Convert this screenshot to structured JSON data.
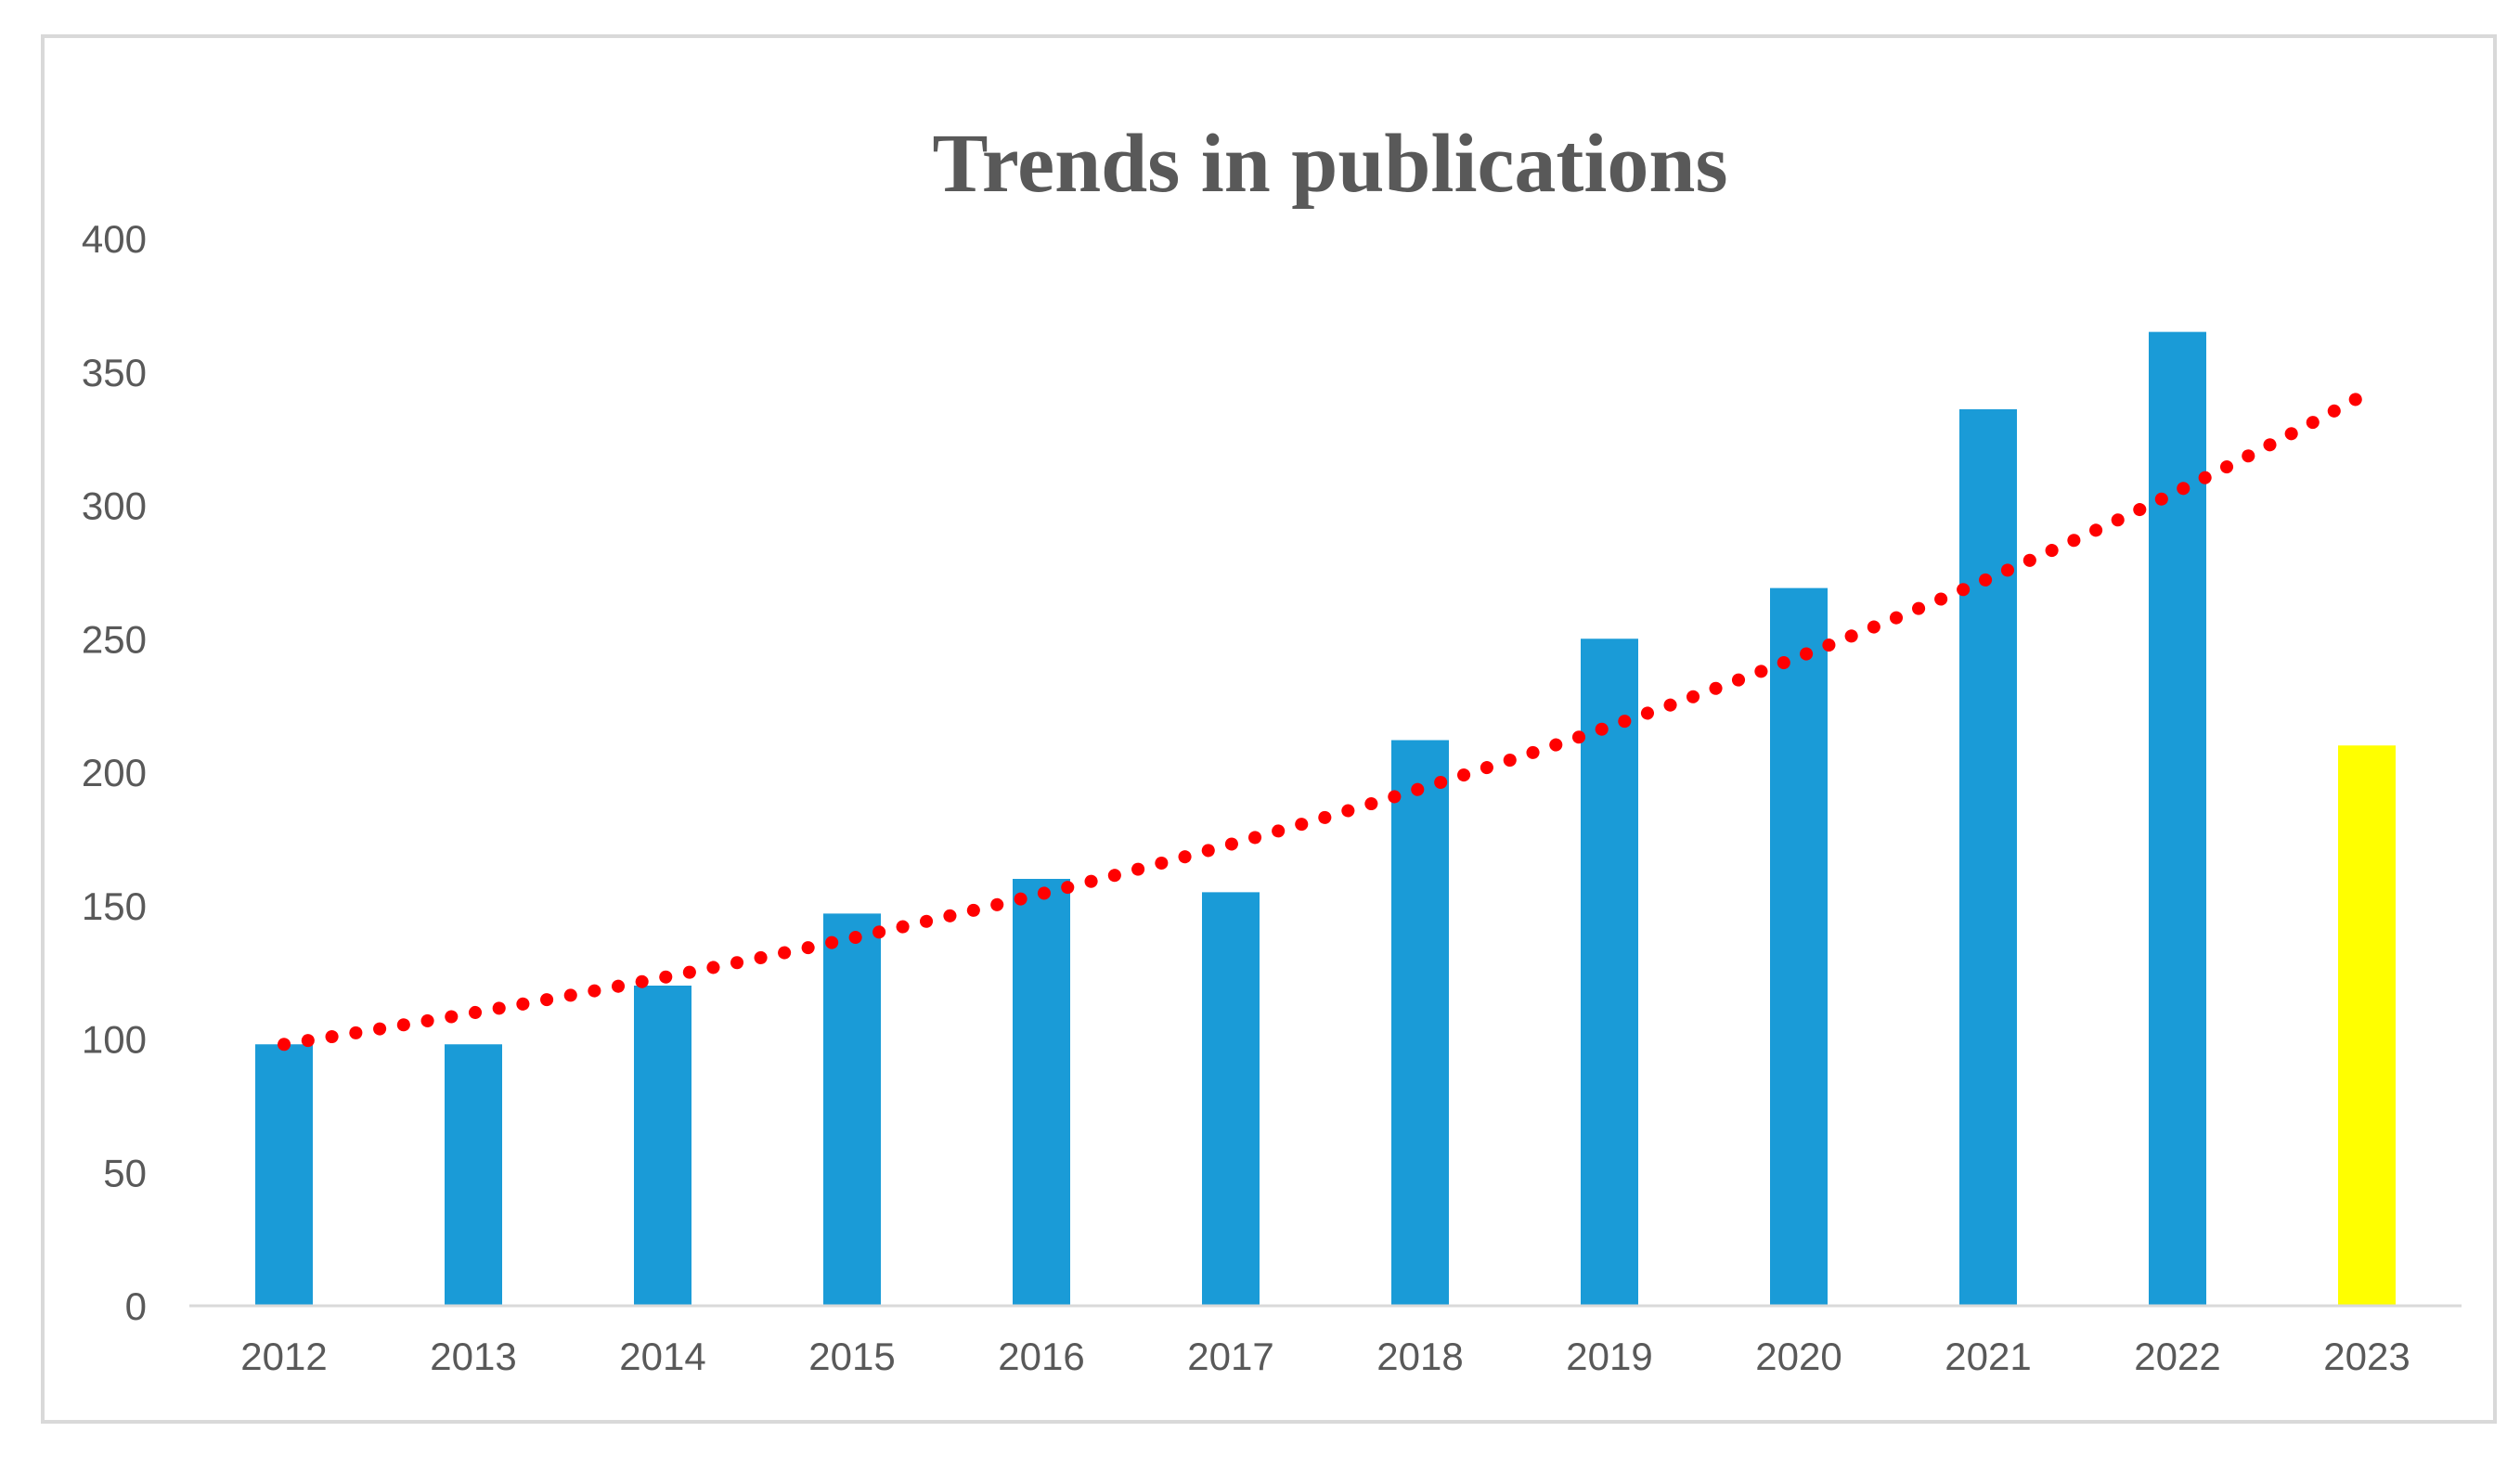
{
  "chart_data": {
    "type": "bar",
    "title": "Trends in publications",
    "xlabel": "",
    "ylabel": "",
    "categories": [
      "2012",
      "2013",
      "2014",
      "2015",
      "2016",
      "2017",
      "2018",
      "2019",
      "2020",
      "2021",
      "2022",
      "2023"
    ],
    "series": [
      {
        "values": [
          98,
          98,
          120,
          147,
          160,
          155,
          212,
          250,
          269,
          336,
          365,
          210
        ]
      }
    ],
    "bar_colors": [
      "#1a9bd7",
      "#1a9bd7",
      "#1a9bd7",
      "#1a9bd7",
      "#1a9bd7",
      "#1a9bd7",
      "#1a9bd7",
      "#1a9bd7",
      "#1a9bd7",
      "#1a9bd7",
      "#1a9bd7",
      "#ffff00"
    ],
    "trendline": {
      "type": "exponential",
      "style": "dotted",
      "color": "#ff0000",
      "start_value": 98,
      "end_value": 342
    },
    "ylim": [
      0,
      400
    ],
    "yticks": [
      0,
      50,
      100,
      150,
      200,
      250,
      300,
      350,
      400
    ],
    "grid": false,
    "legend": "none"
  }
}
